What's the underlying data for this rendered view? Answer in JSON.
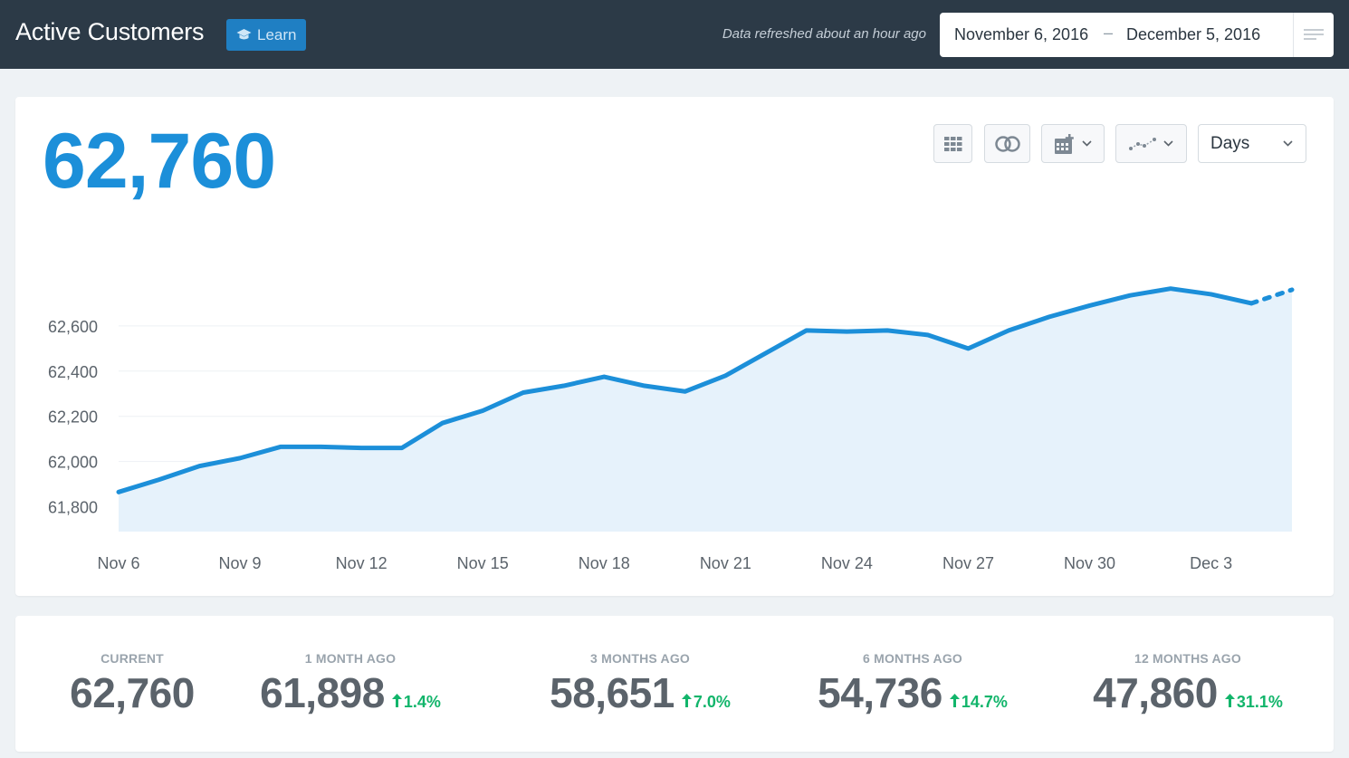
{
  "header": {
    "title": "Active Customers",
    "learn_label": "Learn",
    "refresh_text": "Data refreshed about an hour ago",
    "date_start": "November 6, 2016",
    "date_separator": "–",
    "date_end": "December 5, 2016"
  },
  "main": {
    "big_number": "62,760",
    "interval_select": "Days"
  },
  "colors": {
    "accent": "#1c8fd9",
    "header_bg": "#2c3a47",
    "positive": "#12b56b"
  },
  "chart_data": {
    "type": "area",
    "title": "Active Customers",
    "xlabel": "",
    "ylabel": "",
    "x_ticks": [
      "Nov 6",
      "Nov 9",
      "Nov 12",
      "Nov 15",
      "Nov 18",
      "Nov 21",
      "Nov 24",
      "Nov 27",
      "Nov 30",
      "Dec 3"
    ],
    "y_ticks": [
      "61,800",
      "62,000",
      "62,200",
      "62,400",
      "62,600"
    ],
    "y_tick_values": [
      61800,
      62000,
      62200,
      62400,
      62600
    ],
    "ylim": [
      61690,
      62900
    ],
    "grid": true,
    "series": [
      {
        "name": "Active Customers",
        "x": [
          "Nov 6",
          "Nov 7",
          "Nov 8",
          "Nov 9",
          "Nov 10",
          "Nov 11",
          "Nov 12",
          "Nov 13",
          "Nov 14",
          "Nov 15",
          "Nov 16",
          "Nov 17",
          "Nov 18",
          "Nov 19",
          "Nov 20",
          "Nov 21",
          "Nov 22",
          "Nov 23",
          "Nov 24",
          "Nov 25",
          "Nov 26",
          "Nov 27",
          "Nov 28",
          "Nov 29",
          "Nov 30",
          "Dec 1",
          "Dec 2",
          "Dec 3",
          "Dec 4",
          "Dec 5"
        ],
        "values": [
          61865,
          61920,
          61980,
          62015,
          62065,
          62065,
          62060,
          62060,
          62170,
          62225,
          62305,
          62335,
          62375,
          62335,
          62310,
          62380,
          62480,
          62580,
          62575,
          62580,
          62560,
          62500,
          62580,
          62640,
          62690,
          62735,
          62765,
          62740,
          62700,
          62760
        ],
        "projected_from_index": 28
      }
    ]
  },
  "stats": [
    {
      "label": "CURRENT",
      "value": "62,760",
      "change": ""
    },
    {
      "label": "1 MONTH AGO",
      "value": "61,898",
      "change": "1.4%"
    },
    {
      "label": "3 MONTHS AGO",
      "value": "58,651",
      "change": "7.0%"
    },
    {
      "label": "6 MONTHS AGO",
      "value": "54,736",
      "change": "14.7%"
    },
    {
      "label": "12 MONTHS AGO",
      "value": "47,860",
      "change": "31.1%"
    }
  ]
}
